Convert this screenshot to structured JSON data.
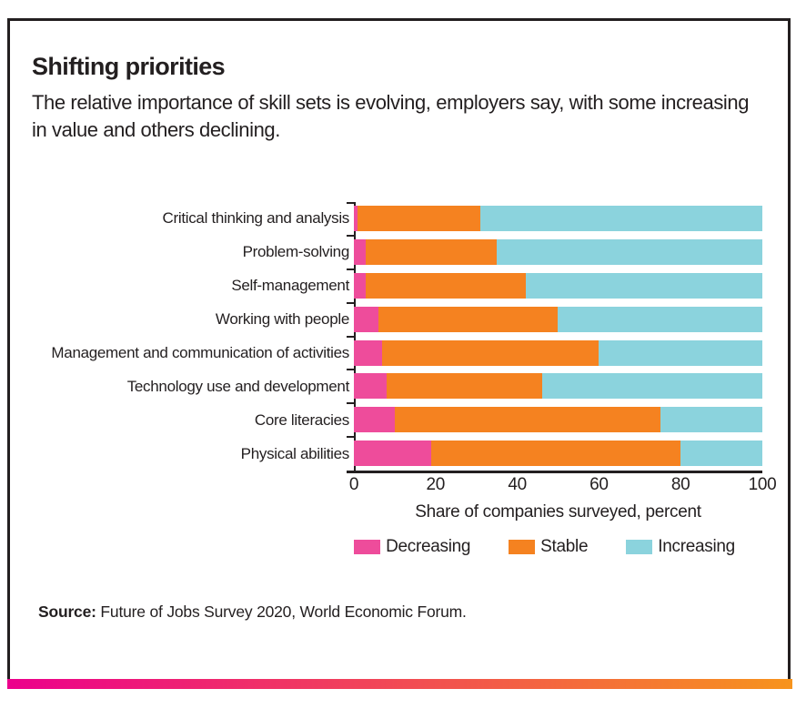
{
  "header": {
    "title": "Shifting priorities",
    "subtitle": "The relative importance of skill sets is evolving, employers say, with some increasing in value and others declining."
  },
  "chart_data": {
    "type": "bar",
    "orientation": "horizontal",
    "stacked": true,
    "categories": [
      "Critical thinking and analysis",
      "Problem-solving",
      "Self-management",
      "Working with people",
      "Management and communication of activities",
      "Technology use and development",
      "Core literacies",
      "Physical abilities"
    ],
    "series": [
      {
        "name": "Decreasing",
        "color": "#ee4c9b",
        "values": [
          1,
          3,
          3,
          6,
          7,
          8,
          10,
          19
        ]
      },
      {
        "name": "Stable",
        "color": "#f58220",
        "values": [
          30,
          32,
          39,
          44,
          53,
          38,
          65,
          61
        ]
      },
      {
        "name": "Increasing",
        "color": "#8bd3dd",
        "values": [
          69,
          65,
          58,
          50,
          40,
          54,
          25,
          20
        ]
      }
    ],
    "xlabel": "Share of companies surveyed, percent",
    "x_ticks": [
      0,
      20,
      40,
      60,
      80,
      100
    ],
    "xlim": [
      0,
      100
    ],
    "grid": false,
    "legend_position": "bottom"
  },
  "source": {
    "label": "Source:",
    "text": " Future of Jobs Survey 2020, World Economic Forum."
  },
  "colors": {
    "text": "#231f20",
    "border": "#231f20",
    "gradient_left": "#ec008c",
    "gradient_right": "#f7941d"
  }
}
